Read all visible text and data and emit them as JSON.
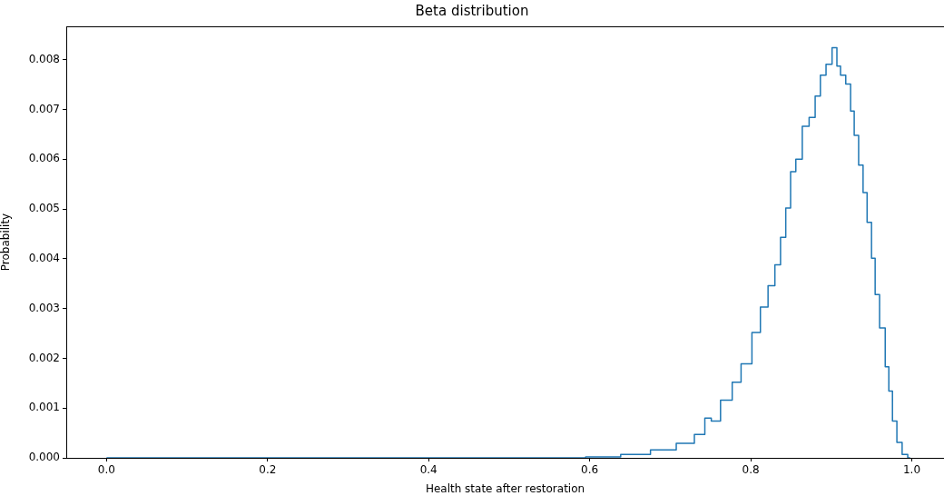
{
  "chart_data": {
    "type": "step",
    "title": "Beta distribution",
    "xlabel": "Health state after restoration",
    "ylabel": "Probability",
    "xlim": [
      -0.05,
      1.04
    ],
    "ylim": [
      0,
      0.00867
    ],
    "xticks": [
      {
        "value": 0,
        "label": "0.0"
      },
      {
        "value": 0.2,
        "label": "0.2"
      },
      {
        "value": 0.4,
        "label": "0.4"
      },
      {
        "value": 0.6,
        "label": "0.6"
      },
      {
        "value": 0.8,
        "label": "0.8"
      },
      {
        "value": 1,
        "label": "1.0"
      }
    ],
    "yticks": [
      {
        "value": 0,
        "label": "0.000"
      },
      {
        "value": 0.001,
        "label": "0.001"
      },
      {
        "value": 0.002,
        "label": "0.002"
      },
      {
        "value": 0.003,
        "label": "0.003"
      },
      {
        "value": 0.004,
        "label": "0.004"
      },
      {
        "value": 0.005,
        "label": "0.005"
      },
      {
        "value": 0.006,
        "label": "0.006"
      },
      {
        "value": 0.007,
        "label": "0.007"
      },
      {
        "value": 0.008,
        "label": "0.008"
      }
    ],
    "grid": false,
    "legend": false,
    "series": [
      {
        "color": "#1f77b4",
        "x": [
          0,
          0.57,
          0.62,
          0.657,
          0.694,
          0.721,
          0.739,
          0.747,
          0.755,
          0.77,
          0.784,
          0.792,
          0.796,
          0.807,
          0.817,
          0.826,
          0.834,
          0.84,
          0.847,
          0.852,
          0.86,
          0.868,
          0.877,
          0.883,
          0.89,
          0.897,
          0.905,
          0.909,
          0.914,
          0.922,
          0.926,
          0.931,
          0.937,
          0.942,
          0.947,
          0.953,
          0.956,
          0.964,
          0.97,
          0.973,
          0.979,
          0.984,
          0.992,
          0.998
        ],
        "values": [
          0,
          0,
          2e-05,
          7e-05,
          0.00016,
          0.00029,
          0.00047,
          0.0008,
          0.00074,
          0.00116,
          0.00152,
          0.00189,
          0.00189,
          0.00252,
          0.00303,
          0.00346,
          0.00388,
          0.00443,
          0.00502,
          0.00575,
          0.006,
          0.00666,
          0.00684,
          0.00727,
          0.00769,
          0.00791,
          0.00824,
          0.00787,
          0.00769,
          0.00751,
          0.00697,
          0.00648,
          0.00588,
          0.00533,
          0.00473,
          0.00401,
          0.00328,
          0.00261,
          0.00183,
          0.00134,
          0.00074,
          0.00031,
          7e-05,
          0
        ]
      }
    ]
  }
}
